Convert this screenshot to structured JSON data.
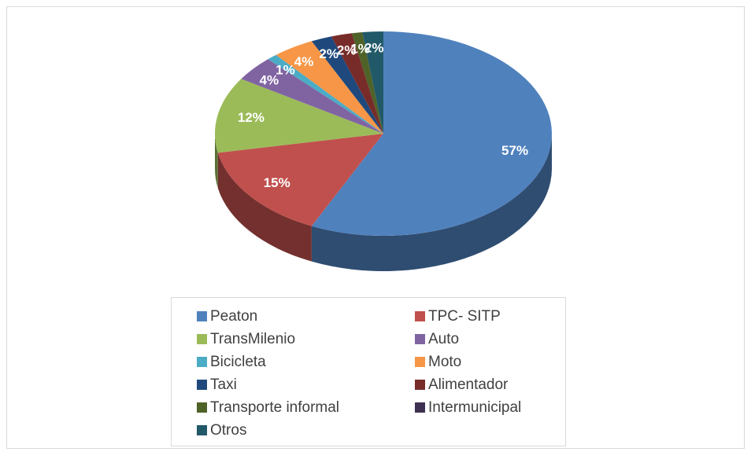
{
  "chart_data": {
    "type": "pie",
    "categories": [
      "Peaton",
      "TPC- SITP",
      "TransMilenio",
      "Auto",
      "Bicicleta",
      "Moto",
      "Taxi",
      "Alimentador",
      "Transporte informal",
      "Intermunicipal",
      "Otros"
    ],
    "values": [
      57,
      15,
      12,
      4,
      1,
      4,
      2,
      2,
      1,
      0,
      2
    ],
    "value_labels": [
      "57%",
      "15%",
      "12%",
      "4%",
      "1%",
      "4%",
      "2%",
      "2%",
      "1%",
      null,
      "2%"
    ],
    "colors": [
      "#4f81bd",
      "#c0504d",
      "#9bbb59",
      "#8064a2",
      "#4bacc6",
      "#f79646",
      "#1f497d",
      "#772c2a",
      "#4f6228",
      "#3f3151",
      "#215968"
    ],
    "legend": "bottom"
  }
}
